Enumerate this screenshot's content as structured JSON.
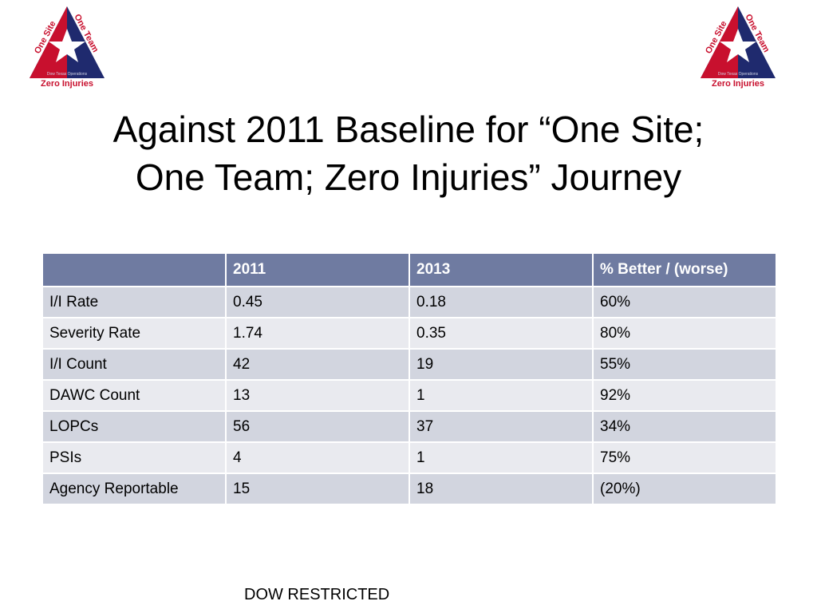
{
  "logo": {
    "top_left_text": "One Site",
    "top_right_text": "One Team",
    "center_text": "Dow Texas Operations",
    "bottom_text": "Zero Injuries",
    "colors": {
      "triangle_red": "#c8102e",
      "triangle_blue": "#1f2a6e",
      "star_white": "#ffffff"
    }
  },
  "slide": {
    "title_line1": "Against 2011 Baseline for “One Site;",
    "title_line2": "One Team; Zero Injuries” Journey"
  },
  "table": {
    "headers": [
      "",
      "2011",
      "2013",
      "% Better / (worse)"
    ],
    "rows": [
      [
        "I/I Rate",
        "0.45",
        "0.18",
        "60%"
      ],
      [
        "Severity Rate",
        "1.74",
        "0.35",
        "80%"
      ],
      [
        "I/I Count",
        "42",
        "19",
        "55%"
      ],
      [
        "DAWC Count",
        "13",
        "1",
        "92%"
      ],
      [
        "LOPCs",
        "56",
        "37",
        "34%"
      ],
      [
        "PSIs",
        "4",
        "1",
        "75%"
      ],
      [
        "Agency Reportable",
        "15",
        "18",
        "(20%)"
      ]
    ],
    "colors": {
      "header_bg": "#6f7ba1",
      "row_dark": "#d2d5df",
      "row_light": "#e9eaef"
    }
  },
  "footer": {
    "text": "DOW RESTRICTED"
  }
}
